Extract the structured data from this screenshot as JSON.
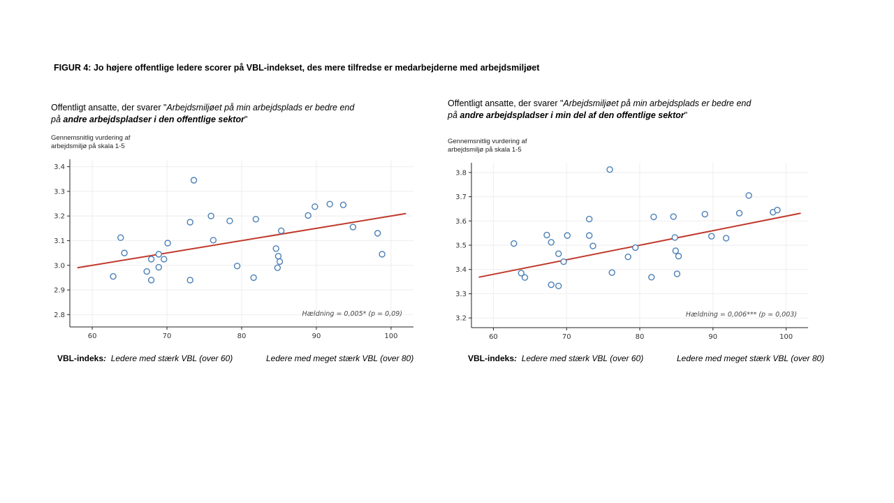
{
  "figure": {
    "title": "FIGUR 4: Jo højere offentlige ledere scorer på VBL-indekset, des mere tilfredse er medarbejderne med arbejdsmiljøet"
  },
  "legend": {
    "lead_label": "VBL-indeks",
    "lead_colon": ":",
    "strong": "Ledere med stærk VBL (over 60)",
    "very_strong": "Ledere med meget stærk VBL (over 80)"
  },
  "colors": {
    "point": "#4a7fb5",
    "trend": "#c0392b",
    "grid": "#eeeeee",
    "axis": "#222222"
  },
  "chart_data": [
    {
      "type": "scatter",
      "subtitle": {
        "pre": "Offentligt ansatte, der svarer \"",
        "italic1": "Arbejdsmiljøet på min arbejdsplads er bedre end på ",
        "bold": "andre arbejdspladser i den offentlige sektor",
        "post": "\""
      },
      "ylabel": "Gennemsnitlig vurdering af arbejdsmiljø på skala 1-5",
      "xlabel": "",
      "xlim": [
        57,
        103
      ],
      "ylim": [
        2.75,
        3.43
      ],
      "xticks": [
        60,
        70,
        80,
        90,
        100
      ],
      "yticks": [
        2.8,
        2.9,
        3.0,
        3.1,
        3.2,
        3.3,
        3.4
      ],
      "ytick_labels": [
        "2.8",
        "2.9",
        "3.0",
        "3.1",
        "3.2",
        "3.3",
        "3.4"
      ],
      "grid": true,
      "annotation": "Hældning = 0,005* (p = 0,09)",
      "trendline": {
        "x": [
          58,
          102
        ],
        "y": [
          2.99,
          3.21
        ]
      },
      "points": [
        {
          "x": 62.8,
          "y": 2.955
        },
        {
          "x": 63.8,
          "y": 3.112
        },
        {
          "x": 64.3,
          "y": 3.05
        },
        {
          "x": 67.3,
          "y": 2.975
        },
        {
          "x": 67.9,
          "y": 3.025
        },
        {
          "x": 67.9,
          "y": 2.94
        },
        {
          "x": 68.9,
          "y": 3.045
        },
        {
          "x": 68.9,
          "y": 2.992
        },
        {
          "x": 69.6,
          "y": 3.025
        },
        {
          "x": 70.1,
          "y": 3.09
        },
        {
          "x": 73.1,
          "y": 3.175
        },
        {
          "x": 73.1,
          "y": 2.94
        },
        {
          "x": 73.6,
          "y": 3.345
        },
        {
          "x": 75.9,
          "y": 3.2
        },
        {
          "x": 76.2,
          "y": 3.102
        },
        {
          "x": 78.4,
          "y": 3.18
        },
        {
          "x": 79.4,
          "y": 2.997
        },
        {
          "x": 81.6,
          "y": 2.95
        },
        {
          "x": 81.9,
          "y": 3.187
        },
        {
          "x": 84.6,
          "y": 3.068
        },
        {
          "x": 84.9,
          "y": 3.037
        },
        {
          "x": 84.8,
          "y": 2.99
        },
        {
          "x": 85.1,
          "y": 3.015
        },
        {
          "x": 85.3,
          "y": 3.14
        },
        {
          "x": 88.9,
          "y": 3.202
        },
        {
          "x": 89.8,
          "y": 3.238
        },
        {
          "x": 91.8,
          "y": 3.248
        },
        {
          "x": 93.6,
          "y": 3.245
        },
        {
          "x": 94.9,
          "y": 3.155
        },
        {
          "x": 98.2,
          "y": 3.13
        },
        {
          "x": 98.8,
          "y": 3.045
        }
      ]
    },
    {
      "type": "scatter",
      "subtitle": {
        "pre": "Offentligt ansatte, der svarer \"",
        "italic1": "Arbejdsmiljøet på min arbejdsplads er bedre end på ",
        "bold": "andre arbejdspladser  i min del af den offentlige sektor",
        "post": "\""
      },
      "ylabel": "Gennemsnitlig vurdering af arbejdsmiljø på skala 1-5",
      "xlabel": "",
      "xlim": [
        57,
        103
      ],
      "ylim": [
        3.16,
        3.84
      ],
      "xticks": [
        60,
        70,
        80,
        90,
        100
      ],
      "yticks": [
        3.2,
        3.3,
        3.4,
        3.5,
        3.6,
        3.7,
        3.8
      ],
      "ytick_labels": [
        "3.2",
        "3.3",
        "3.4",
        "3.5",
        "3.6",
        "3.7",
        "3.8"
      ],
      "grid": true,
      "annotation": "Hældning = 0,006*** (p = 0,003)",
      "trendline": {
        "x": [
          58,
          102
        ],
        "y": [
          3.368,
          3.632
        ]
      },
      "points": [
        {
          "x": 62.8,
          "y": 3.507
        },
        {
          "x": 63.8,
          "y": 3.385
        },
        {
          "x": 64.3,
          "y": 3.367
        },
        {
          "x": 67.3,
          "y": 3.542
        },
        {
          "x": 67.9,
          "y": 3.512
        },
        {
          "x": 67.9,
          "y": 3.337
        },
        {
          "x": 68.9,
          "y": 3.465
        },
        {
          "x": 68.9,
          "y": 3.332
        },
        {
          "x": 69.6,
          "y": 3.432
        },
        {
          "x": 70.1,
          "y": 3.54
        },
        {
          "x": 73.1,
          "y": 3.608
        },
        {
          "x": 73.1,
          "y": 3.54
        },
        {
          "x": 73.6,
          "y": 3.497
        },
        {
          "x": 75.9,
          "y": 3.812
        },
        {
          "x": 76.2,
          "y": 3.387
        },
        {
          "x": 78.4,
          "y": 3.452
        },
        {
          "x": 79.4,
          "y": 3.49
        },
        {
          "x": 81.6,
          "y": 3.368
        },
        {
          "x": 81.9,
          "y": 3.617
        },
        {
          "x": 84.6,
          "y": 3.618
        },
        {
          "x": 84.8,
          "y": 3.532
        },
        {
          "x": 84.9,
          "y": 3.477
        },
        {
          "x": 85.1,
          "y": 3.382
        },
        {
          "x": 85.3,
          "y": 3.455
        },
        {
          "x": 88.9,
          "y": 3.628
        },
        {
          "x": 89.8,
          "y": 3.537
        },
        {
          "x": 91.8,
          "y": 3.529
        },
        {
          "x": 93.6,
          "y": 3.632
        },
        {
          "x": 94.9,
          "y": 3.705
        },
        {
          "x": 98.2,
          "y": 3.636
        },
        {
          "x": 98.8,
          "y": 3.645
        }
      ]
    }
  ]
}
